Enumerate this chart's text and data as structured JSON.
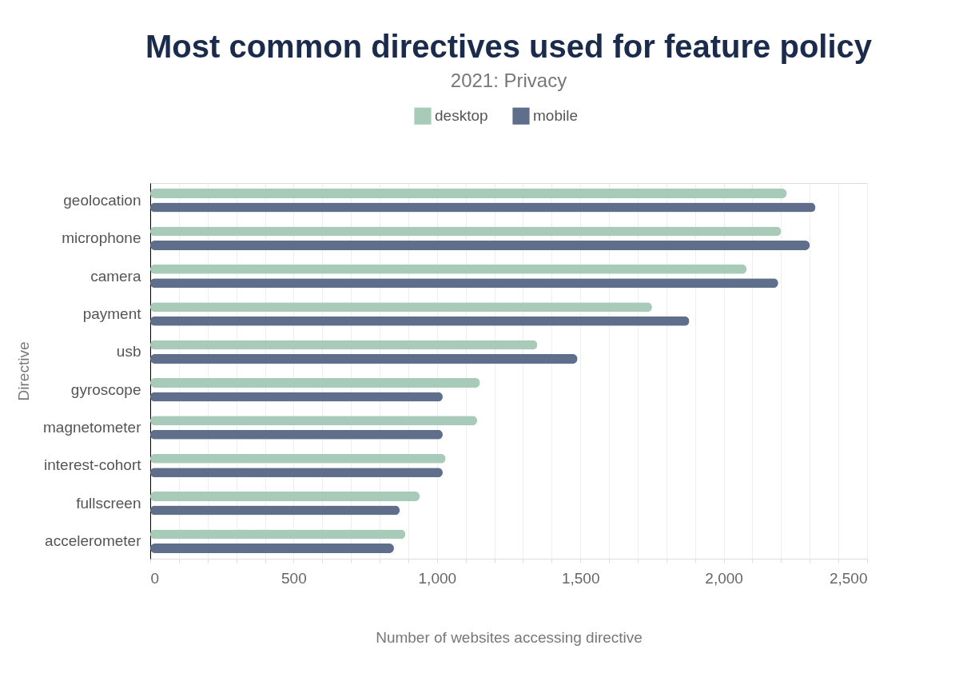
{
  "chart_data": {
    "type": "bar",
    "orientation": "horizontal",
    "title": "Most common directives used for feature policy",
    "subtitle": "2021: Privacy",
    "xlabel": "Number of websites accessing directive",
    "ylabel": "Directive",
    "categories": [
      "geolocation",
      "microphone",
      "camera",
      "payment",
      "usb",
      "gyroscope",
      "magnetometer",
      "interest-cohort",
      "fullscreen",
      "accelerometer"
    ],
    "series": [
      {
        "name": "desktop",
        "color": "#a8cbb9",
        "values": [
          2220,
          2200,
          2080,
          1750,
          1350,
          1150,
          1140,
          1030,
          940,
          890
        ]
      },
      {
        "name": "mobile",
        "color": "#5f6f8b",
        "values": [
          2320,
          2300,
          2190,
          1880,
          1490,
          1020,
          1020,
          1020,
          870,
          850
        ]
      }
    ],
    "xlim": [
      0,
      2500
    ],
    "xticks": [
      0,
      {
        "value": 100,
        "label": null
      },
      {
        "value": 200,
        "label": null
      },
      {
        "value": 300,
        "label": null
      },
      {
        "value": 400,
        "label": null
      },
      {
        "value": 500,
        "label": "500"
      },
      {
        "value": 600,
        "label": null
      },
      {
        "value": 700,
        "label": null
      },
      {
        "value": 800,
        "label": null
      },
      {
        "value": 900,
        "label": null
      },
      {
        "value": 1000,
        "label": "1,000"
      },
      {
        "value": 1100,
        "label": null
      },
      {
        "value": 1200,
        "label": null
      },
      {
        "value": 1300,
        "label": null
      },
      {
        "value": 1400,
        "label": null
      },
      {
        "value": 1500,
        "label": "1,500"
      },
      {
        "value": 1600,
        "label": null
      },
      {
        "value": 1700,
        "label": null
      },
      {
        "value": 1800,
        "label": null
      },
      {
        "value": 1900,
        "label": null
      },
      {
        "value": 2000,
        "label": "2,000"
      },
      {
        "value": 2100,
        "label": null
      },
      {
        "value": 2200,
        "label": null
      },
      {
        "value": 2300,
        "label": null
      },
      {
        "value": 2400,
        "label": null
      },
      {
        "value": 2500,
        "label": "2,500"
      }
    ],
    "grid": "x",
    "legend": "top"
  }
}
